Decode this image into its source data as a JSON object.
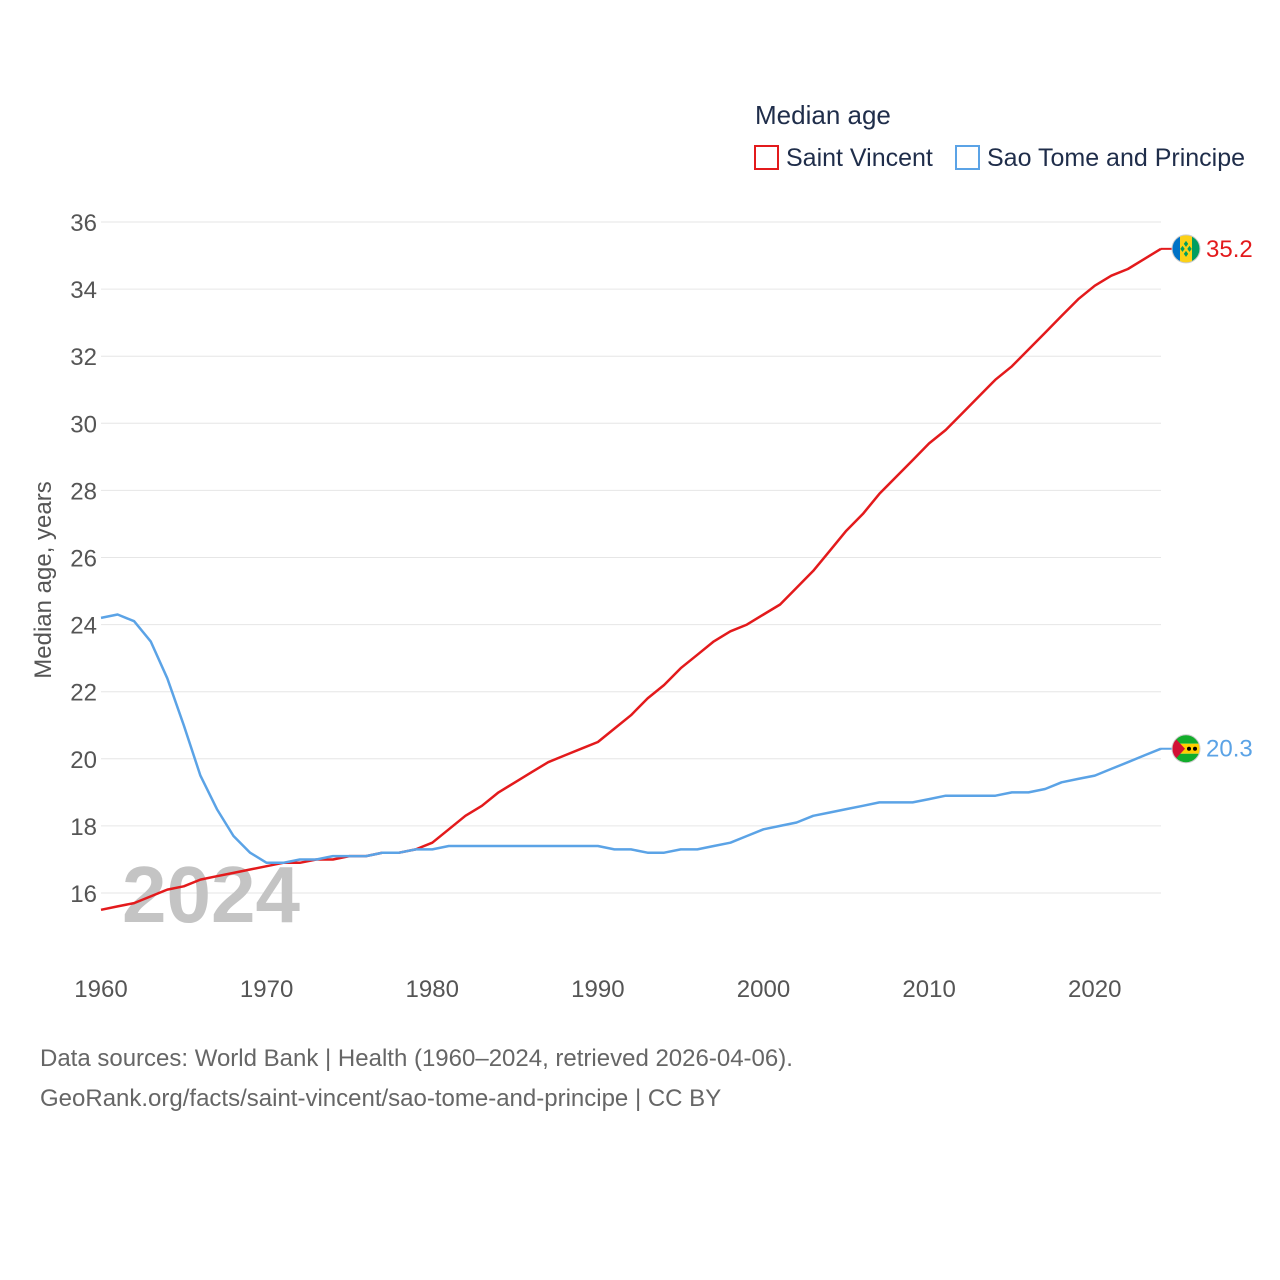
{
  "chart_data": {
    "type": "line",
    "title": "Median age",
    "ylabel": "Median age, years",
    "xlabel": "",
    "xlim": [
      1960,
      2024
    ],
    "ylim": [
      15,
      36
    ],
    "yticks": [
      16,
      18,
      20,
      22,
      24,
      26,
      28,
      30,
      32,
      34,
      36
    ],
    "xticks": [
      1960,
      1970,
      1980,
      1990,
      2000,
      2010,
      2020
    ],
    "year_stamp": "2024",
    "series": [
      {
        "name": "Saint Vincent",
        "color": "#e31a1c",
        "end_label": "35.2",
        "flag": "saint-vincent-flag",
        "x": [
          1960,
          1961,
          1962,
          1963,
          1964,
          1965,
          1966,
          1967,
          1968,
          1969,
          1970,
          1971,
          1972,
          1973,
          1974,
          1975,
          1976,
          1977,
          1978,
          1979,
          1980,
          1981,
          1982,
          1983,
          1984,
          1985,
          1986,
          1987,
          1988,
          1989,
          1990,
          1991,
          1992,
          1993,
          1994,
          1995,
          1996,
          1997,
          1998,
          1999,
          2000,
          2001,
          2002,
          2003,
          2004,
          2005,
          2006,
          2007,
          2008,
          2009,
          2010,
          2011,
          2012,
          2013,
          2014,
          2015,
          2016,
          2017,
          2018,
          2019,
          2020,
          2021,
          2022,
          2023,
          2024
        ],
        "values": [
          15.5,
          15.6,
          15.7,
          15.9,
          16.1,
          16.2,
          16.4,
          16.5,
          16.6,
          16.7,
          16.8,
          16.9,
          16.9,
          17.0,
          17.0,
          17.1,
          17.1,
          17.2,
          17.2,
          17.3,
          17.5,
          17.9,
          18.3,
          18.6,
          19.0,
          19.3,
          19.6,
          19.9,
          20.1,
          20.3,
          20.5,
          20.9,
          21.3,
          21.8,
          22.2,
          22.7,
          23.1,
          23.5,
          23.8,
          24.0,
          24.3,
          24.6,
          25.1,
          25.6,
          26.2,
          26.8,
          27.3,
          27.9,
          28.4,
          28.9,
          29.4,
          29.8,
          30.3,
          30.8,
          31.3,
          31.7,
          32.2,
          32.7,
          33.2,
          33.7,
          34.1,
          34.4,
          34.6,
          34.9,
          35.2
        ]
      },
      {
        "name": "Sao Tome and Principe",
        "color": "#5ba3e6",
        "end_label": "20.3",
        "flag": "sao-tome-flag",
        "x": [
          1960,
          1961,
          1962,
          1963,
          1964,
          1965,
          1966,
          1967,
          1968,
          1969,
          1970,
          1971,
          1972,
          1973,
          1974,
          1975,
          1976,
          1977,
          1978,
          1979,
          1980,
          1981,
          1982,
          1983,
          1984,
          1985,
          1986,
          1987,
          1988,
          1989,
          1990,
          1991,
          1992,
          1993,
          1994,
          1995,
          1996,
          1997,
          1998,
          1999,
          2000,
          2001,
          2002,
          2003,
          2004,
          2005,
          2006,
          2007,
          2008,
          2009,
          2010,
          2011,
          2012,
          2013,
          2014,
          2015,
          2016,
          2017,
          2018,
          2019,
          2020,
          2021,
          2022,
          2023,
          2024
        ],
        "values": [
          24.2,
          24.3,
          24.1,
          23.5,
          22.4,
          21.0,
          19.5,
          18.5,
          17.7,
          17.2,
          16.9,
          16.9,
          17.0,
          17.0,
          17.1,
          17.1,
          17.1,
          17.2,
          17.2,
          17.3,
          17.3,
          17.4,
          17.4,
          17.4,
          17.4,
          17.4,
          17.4,
          17.4,
          17.4,
          17.4,
          17.4,
          17.3,
          17.3,
          17.2,
          17.2,
          17.3,
          17.3,
          17.4,
          17.5,
          17.7,
          17.9,
          18.0,
          18.1,
          18.3,
          18.4,
          18.5,
          18.6,
          18.7,
          18.7,
          18.7,
          18.8,
          18.9,
          18.9,
          18.9,
          18.9,
          19.0,
          19.0,
          19.1,
          19.3,
          19.4,
          19.5,
          19.7,
          19.9,
          20.1,
          20.3
        ]
      }
    ]
  },
  "footer": {
    "line1": "Data sources: World Bank | Health (1960–2024, retrieved 2026-04-06).",
    "line2": "GeoRank.org/facts/saint-vincent/sao-tome-and-principe | CC BY"
  }
}
